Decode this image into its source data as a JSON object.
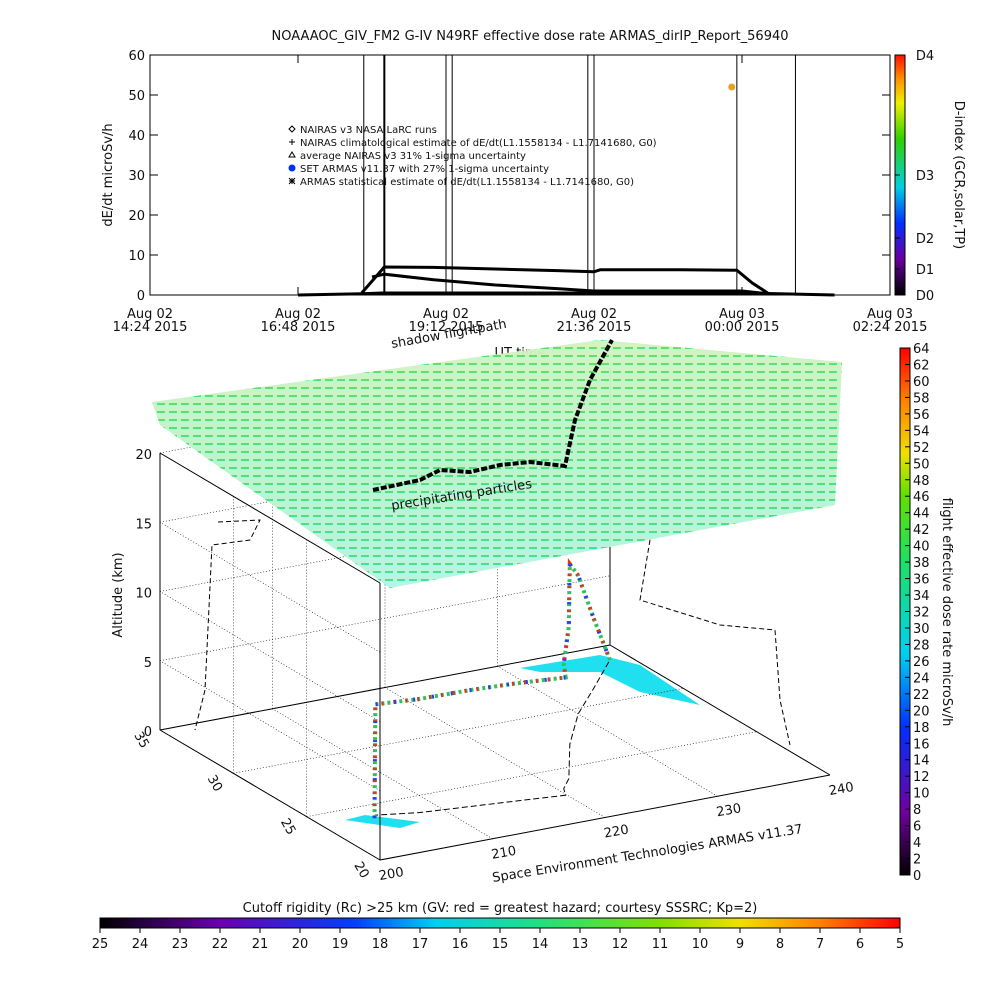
{
  "chart_data": [
    {
      "type": "line",
      "title": "NOAAAOC_GIV_FM2 G-IV    N49RF   effective dose rate ARMAS_dirIP_Report_56940",
      "ylabel": "dE/dt microSv/h",
      "xlabel": "UT time",
      "ylim": [
        0,
        60
      ],
      "yticks": [
        0,
        10,
        20,
        30,
        40,
        50,
        60
      ],
      "xlim": [
        "2015-08-02T14:24",
        "2015-08-03T02:24"
      ],
      "xticks": [
        {
          "value": "2015-08-02T14:24",
          "label": "Aug 02\n14:24 2015"
        },
        {
          "value": "2015-08-02T16:48",
          "label": "Aug 02\n16:48 2015"
        },
        {
          "value": "2015-08-02T19:12",
          "label": "Aug 02\n19:12 2015"
        },
        {
          "value": "2015-08-02T21:36",
          "label": "Aug 02\n21:36 2015"
        },
        {
          "value": "2015-08-03T00:00",
          "label": "Aug 03\n00:00 2015"
        },
        {
          "value": "2015-08-03T02:24",
          "label": "Aug 03\n02:24 2015"
        }
      ],
      "vlines": [
        "2015-08-02T17:52",
        "2015-08-02T18:12",
        "2015-08-02T19:12",
        "2015-08-02T19:18",
        "2015-08-02T21:30",
        "2015-08-02T21:36",
        "2015-08-02T23:55",
        "2015-08-03T00:52"
      ],
      "series": [
        {
          "name": "NAIRAS v3 NASA LaRC runs",
          "color": "#000000",
          "marker": "diamond",
          "x": [
            "2015-08-02T16:48",
            "2015-08-02T17:50",
            "2015-08-02T18:10",
            "2015-08-02T21:00",
            "2015-08-03T00:20",
            "2015-08-03T01:30"
          ],
          "values": [
            0,
            0.3,
            0.5,
            0.5,
            0.4,
            0
          ]
        },
        {
          "name": "NAIRAS climatological estimate of dE/dt(L1.1558134 - L1.7141680, G0)",
          "color": "#000000",
          "marker": "plus",
          "x": [
            "2015-08-02T17:50",
            "2015-08-02T18:12",
            "2015-08-02T19:00",
            "2015-08-02T20:00",
            "2015-08-02T21:00",
            "2015-08-02T21:36",
            "2015-08-02T21:42",
            "2015-08-02T23:00",
            "2015-08-02T23:55",
            "2015-08-03T00:10",
            "2015-08-03T00:25"
          ],
          "values": [
            0.5,
            7,
            6.9,
            6.5,
            6.1,
            5.8,
            6.3,
            6.3,
            6.2,
            3,
            0.5
          ]
        },
        {
          "name": "average NAIRAS v3 31% 1-sigma uncertainty",
          "color": "#000000",
          "marker": "triangle",
          "x": [],
          "values": []
        },
        {
          "name": "SET ARMAS v11.37 with 27% 1-sigma uncertainty",
          "color": "#e8a020",
          "marker": "dot",
          "x": [
            "2015-08-02T23:50"
          ],
          "values": [
            52
          ]
        },
        {
          "name": "ARMAS statistical estimate of dE/dt(L1.1558134 - L1.7141680, G0)",
          "color": "#000000",
          "marker": "star",
          "x": [
            "2015-08-02T18:00",
            "2015-08-02T18:12",
            "2015-08-02T19:00",
            "2015-08-02T20:00",
            "2015-08-02T21:00",
            "2015-08-02T21:36",
            "2015-08-02T23:00",
            "2015-08-03T00:00",
            "2015-08-03T00:25"
          ],
          "values": [
            4.5,
            5.2,
            3.8,
            2.5,
            1.6,
            1,
            1,
            1,
            0.3
          ]
        }
      ]
    },
    {
      "type": "colorbar",
      "label": "D-index (GCR,solar,TP)",
      "ticks": [
        {
          "value": 0,
          "label": "D0"
        },
        {
          "value": 1,
          "label": "D1"
        },
        {
          "value": 2,
          "label": "D2"
        },
        {
          "value": 3,
          "label": "D3"
        },
        {
          "value": 4,
          "label": "D4"
        }
      ]
    },
    {
      "type": "scatter3d",
      "zlabel": "Altitude (km)",
      "footer": "Space Environment Technologies ARMAS v11.37",
      "annotations": [
        "shadow flightpath",
        "precipitating particles"
      ],
      "xlim": [
        200,
        240
      ],
      "xticks": [
        200,
        210,
        220,
        230,
        240
      ],
      "ylim": [
        20,
        35
      ],
      "yticks": [
        20,
        25,
        30,
        35
      ],
      "zlim": [
        0,
        20
      ],
      "zticks": [
        0,
        5,
        10,
        15,
        20
      ],
      "x": [
        204.4,
        204.5,
        204.8,
        208,
        212,
        216,
        219.9,
        220.5,
        222,
        224,
        226,
        230,
        234,
        238.3
      ],
      "y": [
        23.75,
        23.8,
        24,
        23.5,
        23.2,
        22.9,
        22.6,
        23.2,
        24,
        25.5,
        27,
        29.5,
        31.5,
        33.7
      ],
      "z": [
        0,
        4,
        8,
        8.2,
        8.4,
        8.5,
        8.5,
        9,
        11,
        12.5,
        13,
        10,
        5,
        0
      ]
    },
    {
      "type": "colorbar",
      "label": "flight effective dose rate microSv/h",
      "lim": [
        0,
        64
      ],
      "ticks": [
        0,
        2,
        4,
        6,
        8,
        10,
        12,
        14,
        16,
        18,
        20,
        22,
        24,
        26,
        28,
        30,
        32,
        34,
        36,
        38,
        40,
        42,
        44,
        46,
        48,
        50,
        52,
        54,
        56,
        58,
        60,
        62,
        64
      ]
    },
    {
      "type": "colorbar",
      "label": "Cutoff rigidity (Rc) >25 km (GV: red = greatest hazard; courtesy SSSRC; Kp=2)",
      "lim": [
        25,
        5
      ],
      "ticks": [
        25,
        24,
        23,
        22,
        21,
        20,
        19,
        18,
        17,
        16,
        15,
        14,
        13,
        12,
        11,
        10,
        9,
        8,
        7,
        6,
        5
      ]
    }
  ]
}
